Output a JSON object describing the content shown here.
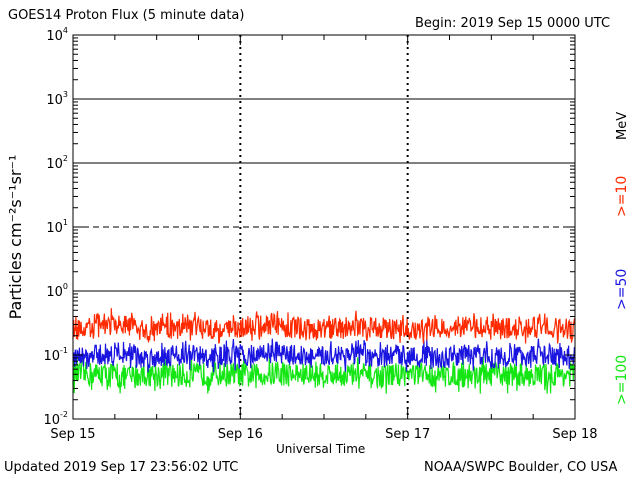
{
  "header": {
    "title": "GOES14 Proton Flux (5 minute data)",
    "begin": "Begin: 2019 Sep 15 0000 UTC"
  },
  "footer": {
    "updated": "Updated 2019 Sep 17 23:56:02 UTC",
    "credit": "NOAA/SWPC Boulder, CO USA"
  },
  "chart_data": {
    "type": "line",
    "xlabel": "Universal Time",
    "ylabel": "Particles cm⁻²s⁻¹sr⁻¹",
    "x_ticks": [
      "Sep 15",
      "Sep 16",
      "Sep 17",
      "Sep 18"
    ],
    "xlim_days": [
      0,
      3
    ],
    "y_scale": "log",
    "ylim": [
      0.01,
      10000
    ],
    "y_ticks": [
      {
        "base": "10",
        "exp": "-2"
      },
      {
        "base": "10",
        "exp": "-1"
      },
      {
        "base": "10",
        "exp": "0"
      },
      {
        "base": "10",
        "exp": "1"
      },
      {
        "base": "10",
        "exp": "2"
      },
      {
        "base": "10",
        "exp": "3"
      },
      {
        "base": "10",
        "exp": "4"
      }
    ],
    "threshold_lines": [
      {
        "value": 10,
        "style": "dashed"
      },
      {
        "value": 1,
        "style": "solid"
      },
      {
        "value": 100,
        "style": "solid"
      },
      {
        "value": 1000,
        "style": "solid"
      }
    ],
    "unit_label": "MeV",
    "series": [
      {
        "name": ">=10",
        "color": "#ff2a00",
        "typical_low": 0.17,
        "typical_high": 0.45,
        "values_per_3h": [
          0.25,
          0.3,
          0.28,
          0.24,
          0.27,
          0.3,
          0.26,
          0.25,
          0.28,
          0.3,
          0.27,
          0.25,
          0.26,
          0.28,
          0.27,
          0.25,
          0.24,
          0.26,
          0.28,
          0.27,
          0.26,
          0.25,
          0.27,
          0.26
        ]
      },
      {
        "name": ">=50",
        "color": "#1a14e0",
        "typical_low": 0.06,
        "typical_high": 0.16,
        "values_per_3h": [
          0.09,
          0.1,
          0.11,
          0.09,
          0.1,
          0.1,
          0.09,
          0.1,
          0.1,
          0.11,
          0.1,
          0.09,
          0.1,
          0.1,
          0.09,
          0.1,
          0.1,
          0.09,
          0.1,
          0.1,
          0.09,
          0.1,
          0.1,
          0.09
        ]
      },
      {
        "name": ">=100",
        "color": "#14e614",
        "typical_low": 0.028,
        "typical_high": 0.085,
        "values_per_3h": [
          0.05,
          0.05,
          0.045,
          0.05,
          0.05,
          0.048,
          0.05,
          0.05,
          0.047,
          0.05,
          0.05,
          0.048,
          0.05,
          0.05,
          0.046,
          0.05,
          0.05,
          0.048,
          0.05,
          0.049,
          0.05,
          0.05,
          0.048,
          0.05
        ]
      }
    ]
  }
}
